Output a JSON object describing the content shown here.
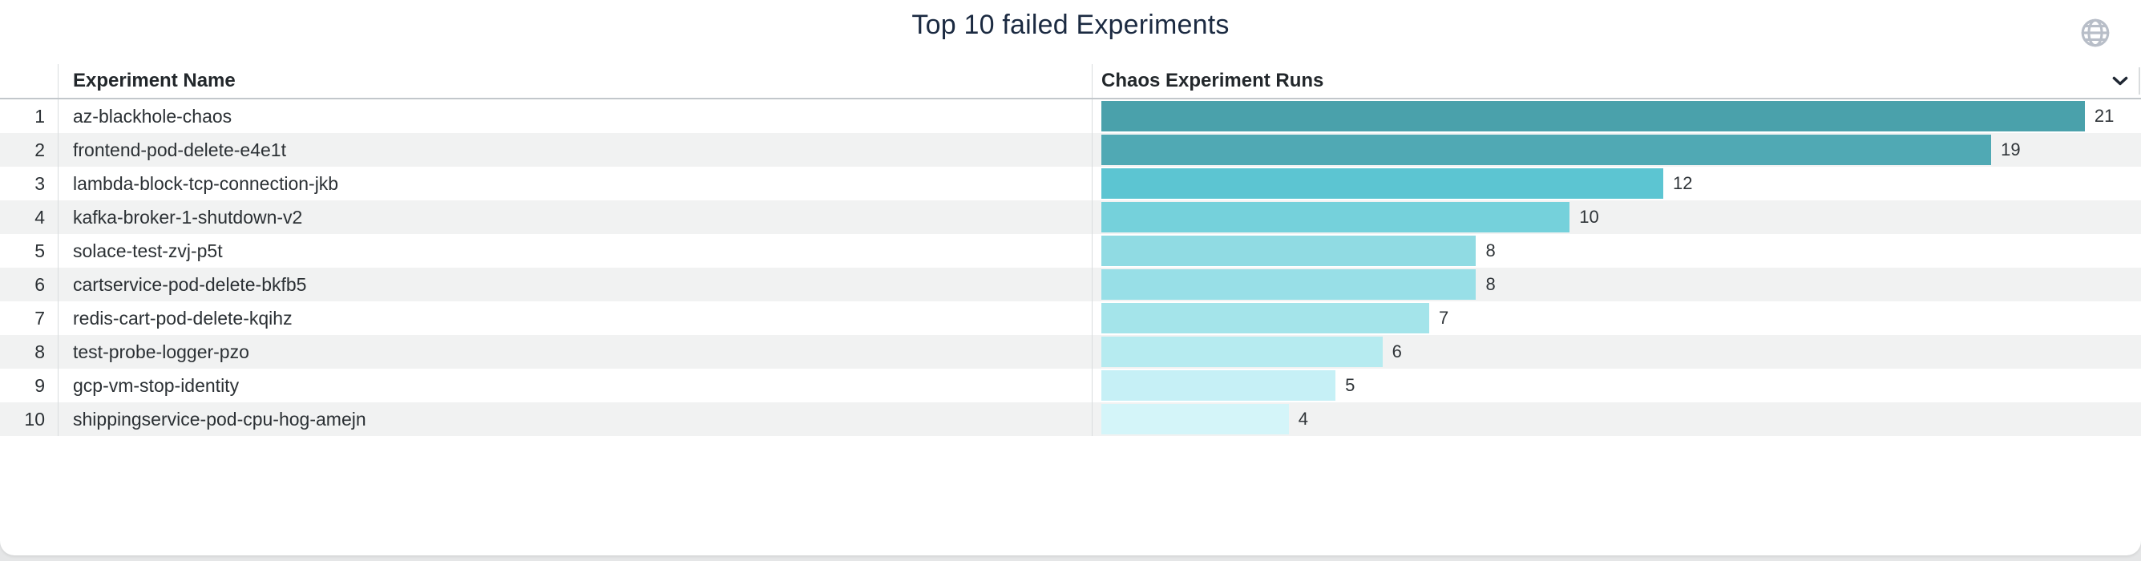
{
  "page": {
    "background_color": "#e5e6e7",
    "card_color": "#ffffff"
  },
  "widget": {
    "title": "Top 10 failed Experiments",
    "title_color": "#1b2a41",
    "globe_icon": "globe",
    "collapse_icon": "chevron-down"
  },
  "table": {
    "columns": [
      {
        "label": "Experiment Name"
      },
      {
        "label": "Chaos Experiment Runs"
      }
    ],
    "zebra_color": "#f1f2f2",
    "rows": [
      {
        "rank": "1",
        "name": "az-blackhole-chaos",
        "runs": 21,
        "bar_color": "#4aa1ab"
      },
      {
        "rank": "2",
        "name": "frontend-pod-delete-e4e1t",
        "runs": 19,
        "bar_color": "#50a9b4"
      },
      {
        "rank": "3",
        "name": "lambda-block-tcp-connection-jkb",
        "runs": 12,
        "bar_color": "#5cc5d2"
      },
      {
        "rank": "4",
        "name": "kafka-broker-1-shutdown-v2",
        "runs": 10,
        "bar_color": "#75d1db"
      },
      {
        "rank": "5",
        "name": "solace-test-zvj-p5t",
        "runs": 8,
        "bar_color": "#90dbe3"
      },
      {
        "rank": "6",
        "name": "cartservice-pod-delete-bkfb5",
        "runs": 8,
        "bar_color": "#98dfe7"
      },
      {
        "rank": "7",
        "name": "redis-cart-pod-delete-kqihz",
        "runs": 7,
        "bar_color": "#a4e4ea"
      },
      {
        "rank": "8",
        "name": "test-probe-logger-pzo",
        "runs": 6,
        "bar_color": "#b6ebf0"
      },
      {
        "rank": "9",
        "name": "gcp-vm-stop-identity",
        "runs": 5,
        "bar_color": "#c6f0f6"
      },
      {
        "rank": "10",
        "name": "shippingservice-pod-cpu-hog-amejn",
        "runs": 4,
        "bar_color": "#d4f5f9"
      }
    ]
  },
  "chart_data": {
    "type": "bar",
    "orientation": "horizontal",
    "title": "Top 10 failed Experiments",
    "categories": [
      "az-blackhole-chaos",
      "frontend-pod-delete-e4e1t",
      "lambda-block-tcp-connection-jkb",
      "kafka-broker-1-shutdown-v2",
      "solace-test-zvj-p5t",
      "cartservice-pod-delete-bkfb5",
      "redis-cart-pod-delete-kqihz",
      "test-probe-logger-pzo",
      "gcp-vm-stop-identity",
      "shippingservice-pod-cpu-hog-amejn"
    ],
    "values": [
      21,
      19,
      12,
      10,
      8,
      8,
      7,
      6,
      5,
      4
    ],
    "value_axis_label": "Chaos Experiment Runs",
    "category_axis_label": "Experiment Name",
    "xlim": [
      0,
      22.2
    ],
    "grid": false,
    "legend": false,
    "data_labels": true,
    "bar_colors": [
      "#4aa1ab",
      "#50a9b4",
      "#5cc5d2",
      "#75d1db",
      "#90dbe3",
      "#98dfe7",
      "#a4e4ea",
      "#b6ebf0",
      "#c6f0f6",
      "#d4f5f9"
    ]
  }
}
